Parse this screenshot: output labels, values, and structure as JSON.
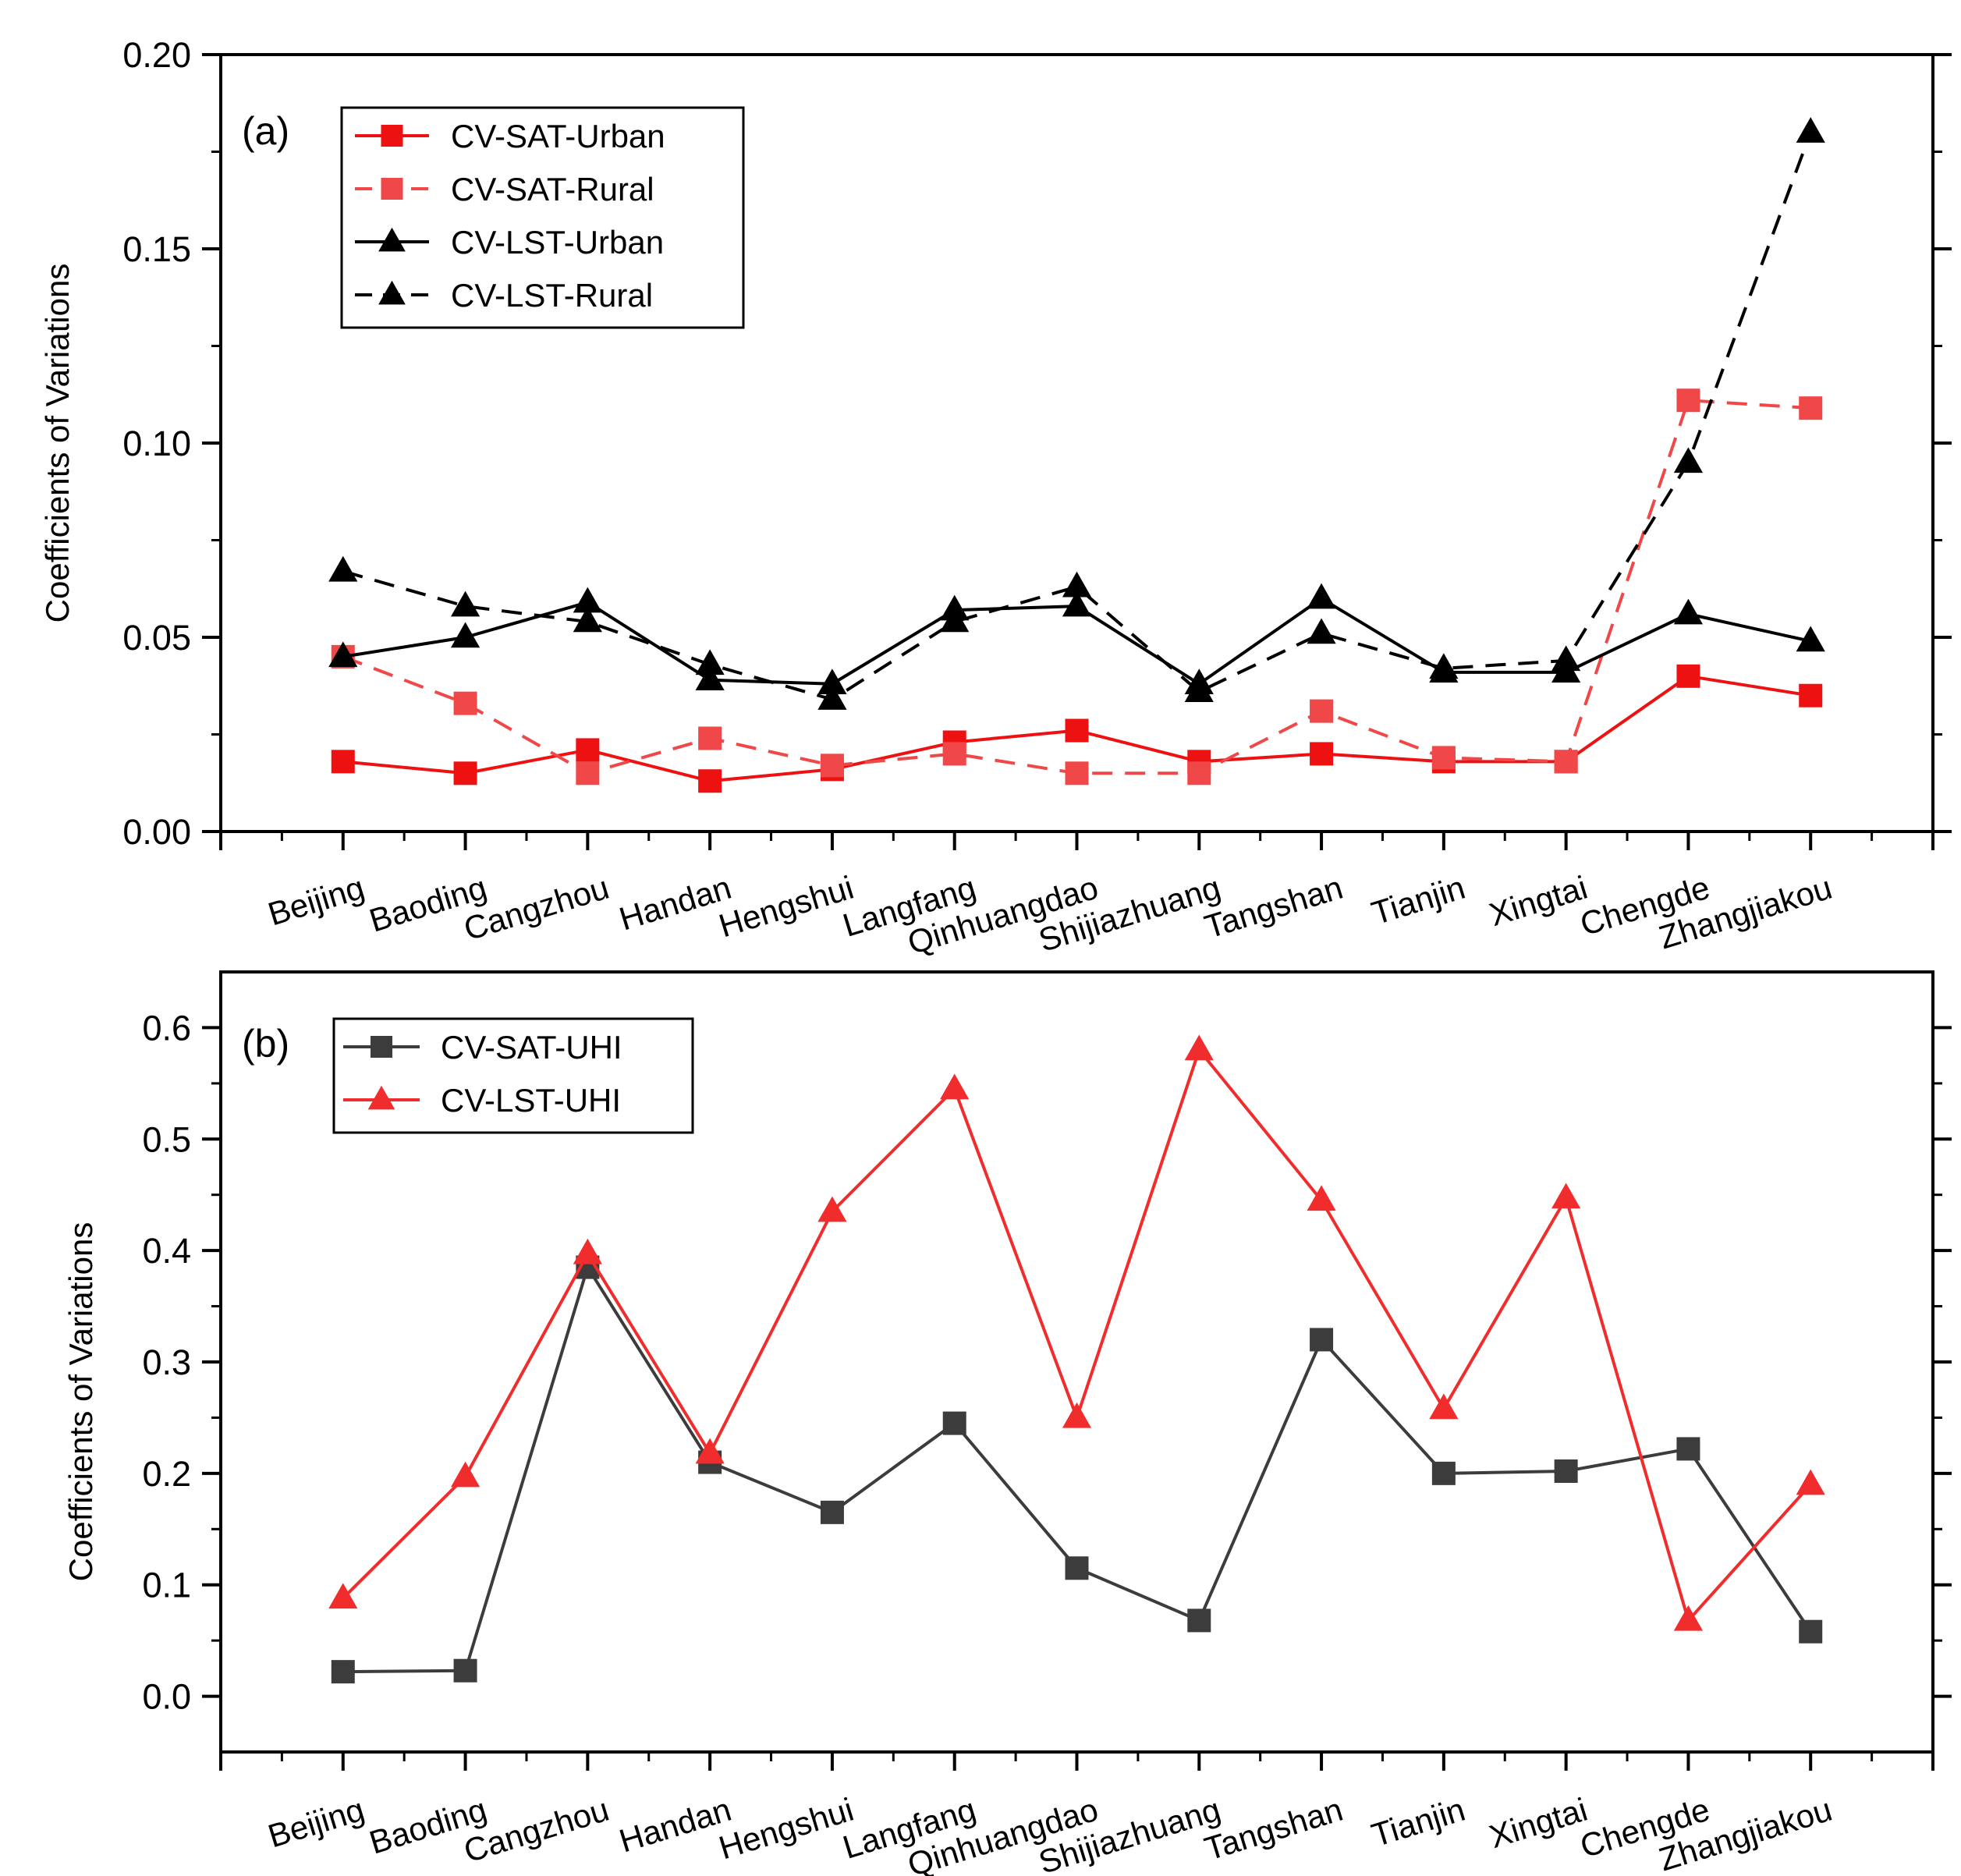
{
  "chart_data": [
    {
      "type": "line",
      "panel_label": "(a)",
      "ylabel": "Coefficients of Variations",
      "ylim": [
        0,
        0.2
      ],
      "yticks": [
        0.0,
        0.05,
        0.1,
        0.15,
        0.2
      ],
      "ytick_labels": [
        "0.00",
        "0.05",
        "0.10",
        "0.15",
        "0.20"
      ],
      "categories": [
        "Beijing",
        "Baoding",
        "Cangzhou",
        "Handan",
        "Hengshui",
        "Langfang",
        "Qinhuangdao",
        "Shijiazhuang",
        "Tangshan",
        "Tianjin",
        "Xingtai",
        "Chengde",
        "Zhangjiakou"
      ],
      "legend_position": "top-left",
      "series": [
        {
          "name": "CV-SAT-Urban",
          "color": "#ee1111",
          "dash": "solid",
          "marker": "square",
          "values": [
            0.018,
            0.015,
            0.021,
            0.013,
            0.016,
            0.023,
            0.026,
            0.018,
            0.02,
            0.018,
            0.018,
            0.04,
            0.035
          ]
        },
        {
          "name": "CV-SAT-Rural",
          "color": "#f04848",
          "dash": "dashed",
          "marker": "square",
          "values": [
            0.045,
            0.033,
            0.015,
            0.024,
            0.017,
            0.02,
            0.015,
            0.015,
            0.031,
            0.019,
            0.018,
            0.111,
            0.109
          ]
        },
        {
          "name": "CV-LST-Urban",
          "color": "#000000",
          "dash": "solid",
          "marker": "triangle",
          "values": [
            0.045,
            0.05,
            0.059,
            0.039,
            0.038,
            0.057,
            0.058,
            0.038,
            0.06,
            0.041,
            0.041,
            0.056,
            0.049
          ]
        },
        {
          "name": "CV-LST-Rural",
          "color": "#000000",
          "dash": "dashed",
          "marker": "triangle",
          "values": [
            0.067,
            0.058,
            0.054,
            0.043,
            0.034,
            0.054,
            0.063,
            0.036,
            0.051,
            0.042,
            0.044,
            0.095,
            0.18
          ]
        }
      ]
    },
    {
      "type": "line",
      "panel_label": "(b)",
      "ylabel": "Coefficients of Variations",
      "ylim": [
        -0.05,
        0.65
      ],
      "yticks": [
        0.0,
        0.1,
        0.2,
        0.3,
        0.4,
        0.5,
        0.6
      ],
      "ytick_labels": [
        "0.0",
        "0.1",
        "0.2",
        "0.3",
        "0.4",
        "0.5",
        "0.6"
      ],
      "categories": [
        "Beijing",
        "Baoding",
        "Cangzhou",
        "Handan",
        "Hengshui",
        "Langfang",
        "Qinhuangdao",
        "Shijiazhuang",
        "Tangshan",
        "Tianjin",
        "Xingtai",
        "Chengde",
        "Zhangjiakou"
      ],
      "legend_position": "top-left",
      "series": [
        {
          "name": "CV-SAT-UHI",
          "color": "#3c3c3c",
          "dash": "solid",
          "marker": "square",
          "values": [
            0.022,
            0.023,
            0.385,
            0.21,
            0.165,
            0.245,
            0.115,
            0.068,
            0.32,
            0.2,
            0.202,
            0.222,
            0.058
          ]
        },
        {
          "name": "CV-LST-UHI",
          "color": "#f02c2c",
          "dash": "solid",
          "marker": "triangle",
          "values": [
            0.088,
            0.197,
            0.397,
            0.218,
            0.435,
            0.545,
            0.25,
            0.58,
            0.445,
            0.258,
            0.447,
            0.068,
            0.19
          ]
        }
      ]
    }
  ]
}
